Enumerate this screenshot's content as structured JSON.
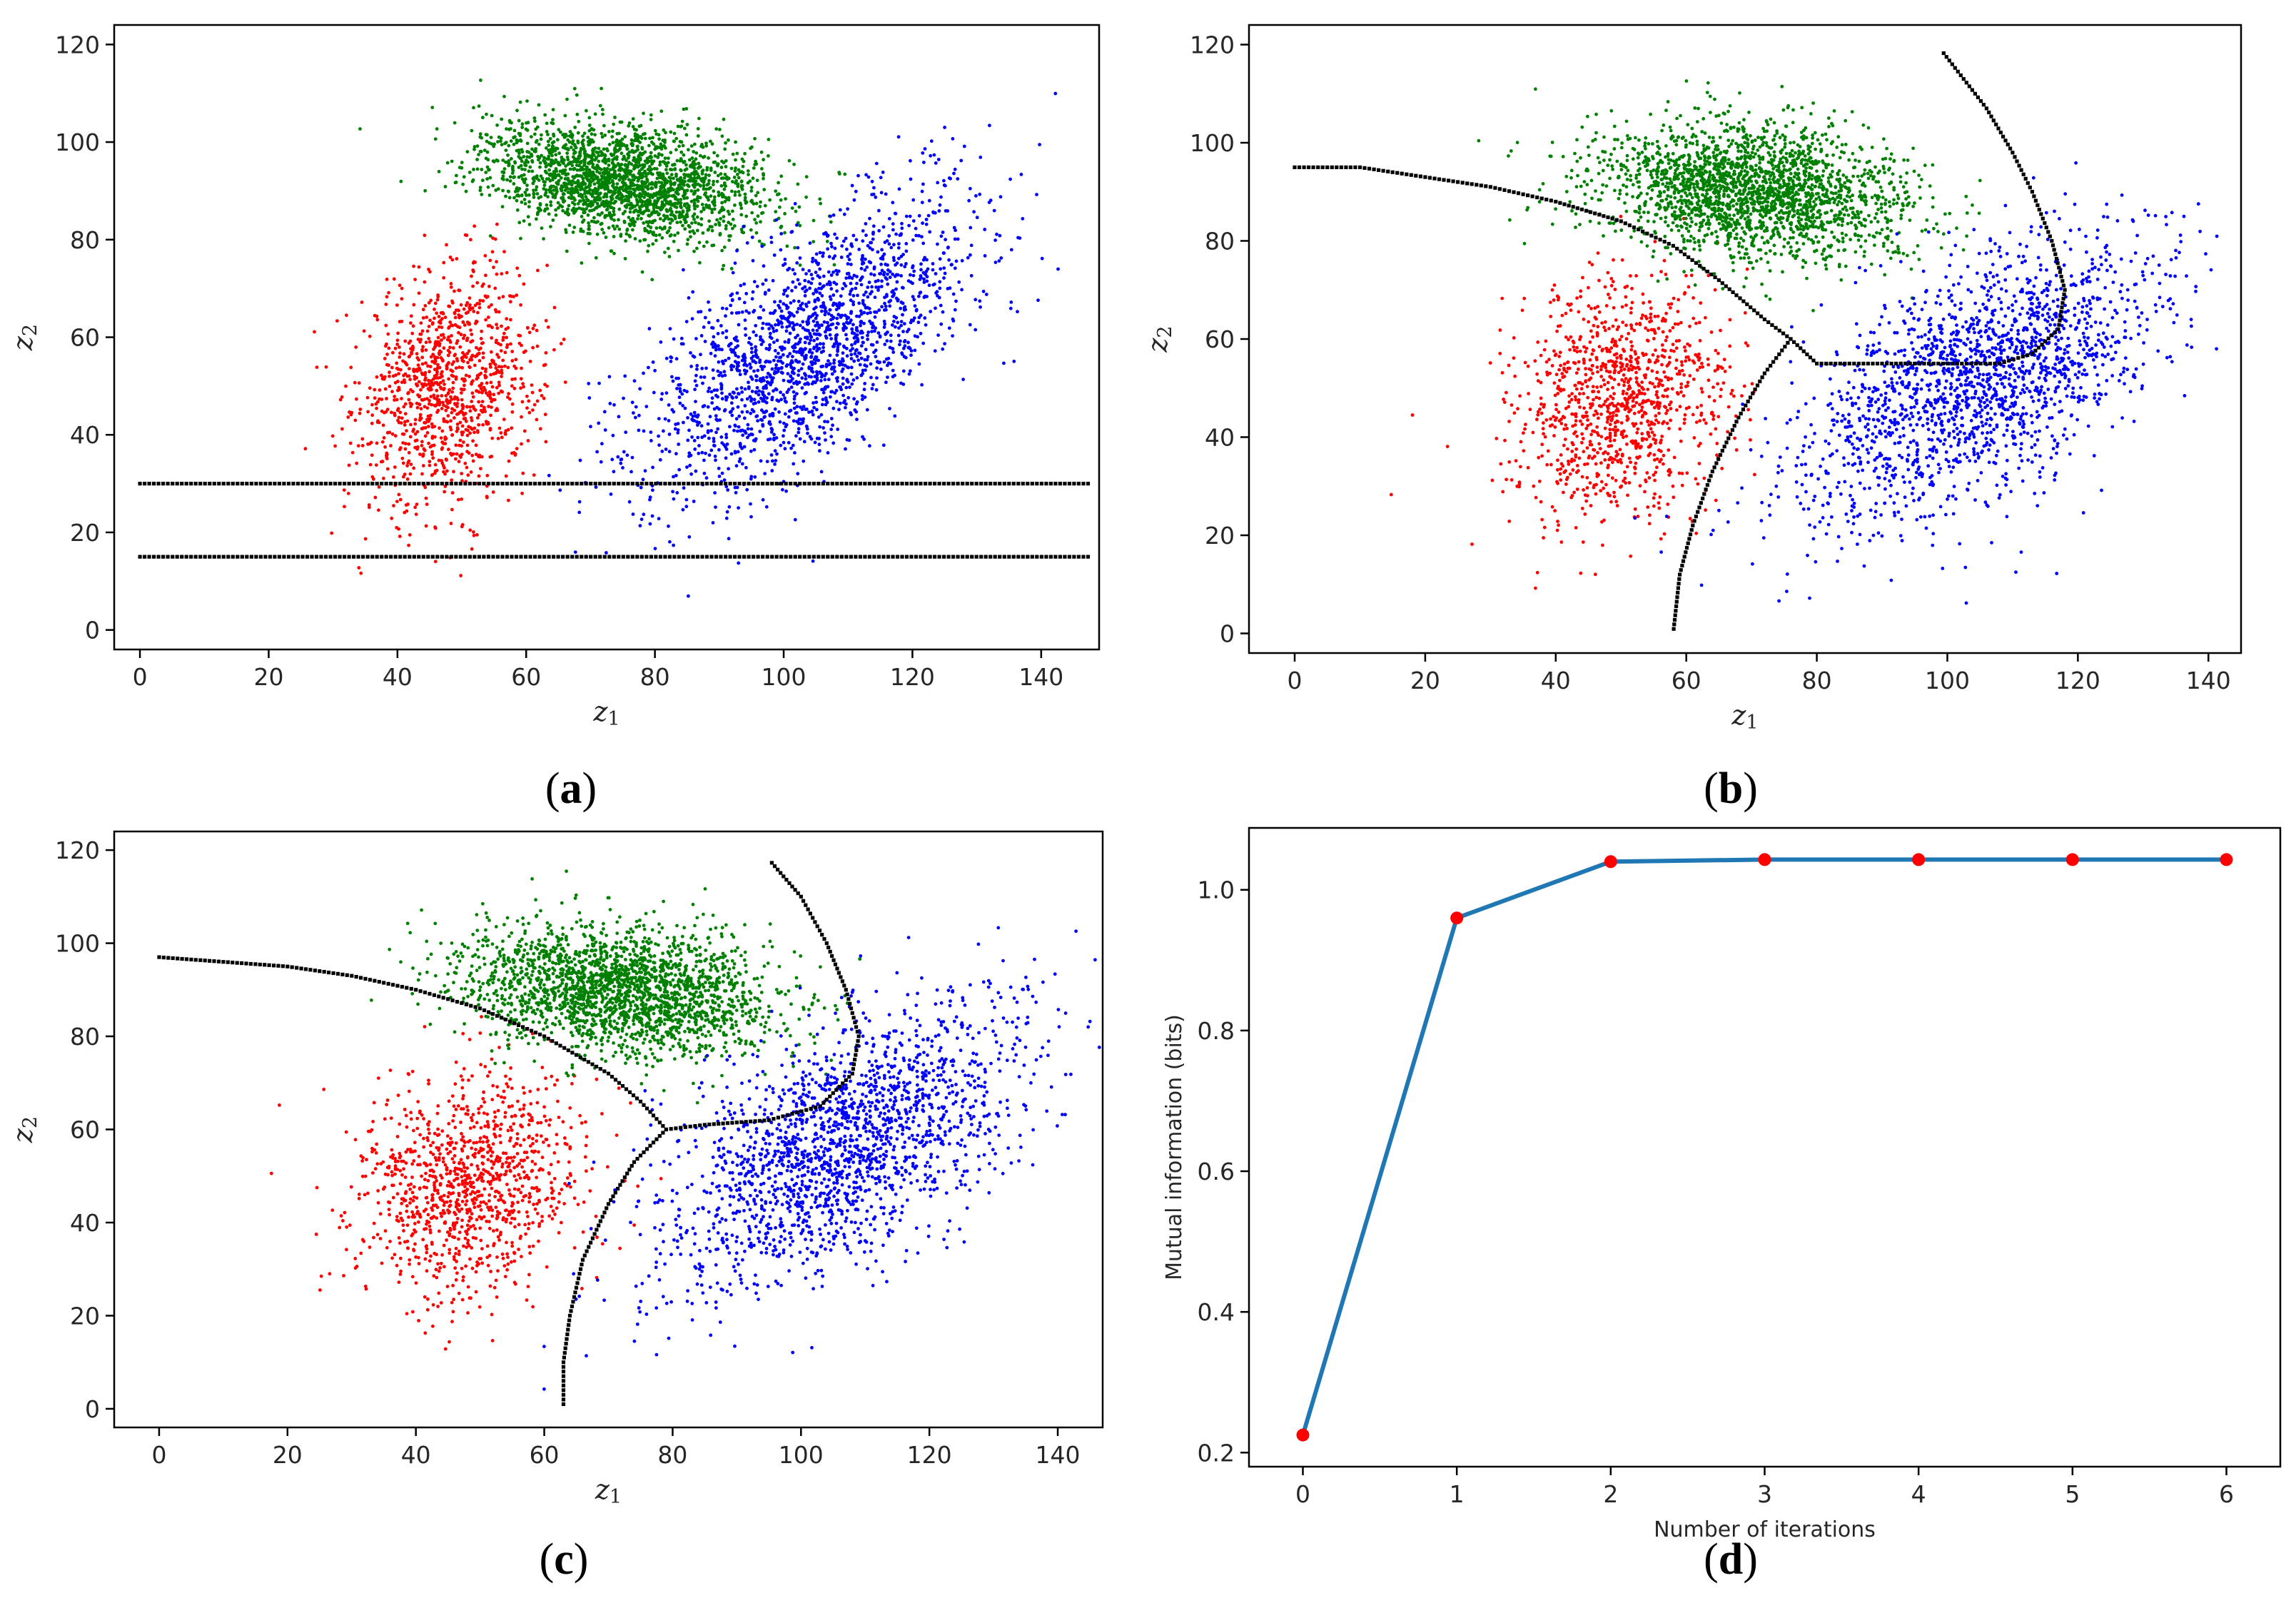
{
  "colors": {
    "red_cluster": "#ff0000",
    "green_cluster": "#008000",
    "blue_cluster": "#0000ff",
    "boundary": "#000000",
    "mi_line": "#1f77b4",
    "mi_markers": "#ff0000"
  },
  "panels": [
    {
      "id": "a",
      "label_prefix": "(",
      "label_letter": "a",
      "label_suffix": ")"
    },
    {
      "id": "b",
      "label_prefix": "(",
      "label_letter": "b",
      "label_suffix": ")"
    },
    {
      "id": "c",
      "label_prefix": "(",
      "label_letter": "c",
      "label_suffix": ")"
    },
    {
      "id": "d",
      "label_prefix": "(",
      "label_letter": "d",
      "label_suffix": ")"
    }
  ],
  "chart_data": [
    {
      "panel": "a",
      "type": "scatter",
      "xlabel_main": "z",
      "xlabel_sub": "1",
      "ylabel_main": "z",
      "ylabel_sub": "2",
      "xlim": [
        -4,
        149
      ],
      "ylim": [
        -4,
        124
      ],
      "xticks": [
        0,
        20,
        40,
        60,
        80,
        100,
        120,
        140
      ],
      "yticks": [
        0,
        20,
        40,
        60,
        80,
        100,
        120
      ],
      "grid": false,
      "clusters": [
        {
          "color": "red",
          "center": [
            48,
            50
          ],
          "spread": [
            7,
            12
          ],
          "rho": 0.2,
          "count": 1100
        },
        {
          "color": "green",
          "center": [
            75,
            92
          ],
          "spread": [
            11,
            6
          ],
          "rho": -0.35,
          "count": 2200
        },
        {
          "color": "blue",
          "center": [
            104,
            58
          ],
          "spread": [
            13,
            15
          ],
          "rho": 0.65,
          "count": 1900
        }
      ],
      "boundaries": [
        {
          "points": [
            [
              0,
              30
            ],
            [
              148,
              30
            ]
          ]
        },
        {
          "points": [
            [
              0,
              15
            ],
            [
              148,
              15
            ]
          ]
        }
      ]
    },
    {
      "panel": "b",
      "type": "scatter",
      "xlabel_main": "z",
      "xlabel_sub": "1",
      "ylabel_main": "z",
      "ylabel_sub": "2",
      "xlim": [
        -7,
        145
      ],
      "ylim": [
        -4,
        124
      ],
      "xticks": [
        0,
        20,
        40,
        60,
        80,
        100,
        120,
        140
      ],
      "yticks": [
        0,
        20,
        40,
        60,
        80,
        100,
        120
      ],
      "grid": false,
      "clusters": [
        {
          "color": "red",
          "center": [
            50,
            47
          ],
          "spread": [
            8,
            12
          ],
          "rho": 0.15,
          "count": 1100
        },
        {
          "color": "green",
          "center": [
            70,
            90
          ],
          "spread": [
            12,
            7
          ],
          "rho": -0.2,
          "count": 2200
        },
        {
          "color": "blue",
          "center": [
            105,
            52
          ],
          "spread": [
            14,
            14
          ],
          "rho": 0.55,
          "count": 1900
        }
      ],
      "boundaries": [
        {
          "points": [
            [
              0,
              95
            ],
            [
              10,
              95
            ],
            [
              20,
              93
            ],
            [
              30,
              91
            ],
            [
              40,
              88
            ],
            [
              50,
              84
            ],
            [
              58,
              79
            ],
            [
              65,
              72
            ],
            [
              72,
              64
            ],
            [
              76,
              60
            ]
          ]
        },
        {
          "points": [
            [
              76,
              60
            ],
            [
              80,
              55
            ],
            [
              95,
              55
            ],
            [
              108,
              55
            ],
            [
              113,
              57
            ],
            [
              117,
              62
            ],
            [
              118,
              70
            ],
            [
              116,
              80
            ],
            [
              113,
              90
            ],
            [
              110,
              98
            ],
            [
              106,
              107
            ],
            [
              99,
              119
            ]
          ]
        },
        {
          "points": [
            [
              76,
              60
            ],
            [
              72,
              53
            ],
            [
              68,
              44
            ],
            [
              64,
              33
            ],
            [
              61,
              22
            ],
            [
              59,
              12
            ],
            [
              58,
              0
            ]
          ]
        }
      ]
    },
    {
      "panel": "c",
      "type": "scatter",
      "xlabel_main": "z",
      "xlabel_sub": "1",
      "ylabel_main": "z",
      "ylabel_sub": "2",
      "xlim": [
        -7,
        147
      ],
      "ylim": [
        -4,
        124
      ],
      "xticks": [
        0,
        20,
        40,
        60,
        80,
        100,
        120,
        140
      ],
      "yticks": [
        0,
        20,
        40,
        60,
        80,
        100,
        120
      ],
      "grid": false,
      "clusters": [
        {
          "color": "red",
          "center": [
            48,
            48
          ],
          "spread": [
            9,
            12
          ],
          "rho": 0.1,
          "count": 1100
        },
        {
          "color": "green",
          "center": [
            72,
            90
          ],
          "spread": [
            12,
            7
          ],
          "rho": -0.25,
          "count": 2200
        },
        {
          "color": "blue",
          "center": [
            106,
            56
          ],
          "spread": [
            14,
            15
          ],
          "rho": 0.55,
          "count": 1900
        }
      ],
      "boundaries": [
        {
          "points": [
            [
              0,
              97
            ],
            [
              10,
              96
            ],
            [
              20,
              95
            ],
            [
              30,
              93
            ],
            [
              40,
              90
            ],
            [
              50,
              86
            ],
            [
              60,
              80
            ],
            [
              70,
              72
            ],
            [
              75,
              66
            ],
            [
              79,
              60
            ]
          ]
        },
        {
          "points": [
            [
              79,
              60
            ],
            [
              85,
              61
            ],
            [
              95,
              62
            ],
            [
              103,
              65
            ],
            [
              108,
              72
            ],
            [
              109,
              80
            ],
            [
              107,
              90
            ],
            [
              104,
              100
            ],
            [
              100,
              110
            ],
            [
              95,
              118
            ]
          ]
        },
        {
          "points": [
            [
              79,
              60
            ],
            [
              74,
              53
            ],
            [
              70,
              44
            ],
            [
              66,
              32
            ],
            [
              64,
              20
            ],
            [
              63,
              10
            ],
            [
              63,
              0
            ]
          ]
        }
      ]
    },
    {
      "panel": "d",
      "type": "line",
      "xlabel": "Number of iterations",
      "ylabel": "Mutual information (bits)",
      "xlim": [
        -0.35,
        6.35
      ],
      "ylim": [
        0.18,
        1.088
      ],
      "xticks": [
        0,
        1,
        2,
        3,
        4,
        5,
        6
      ],
      "ytick_values": [
        0.2,
        0.4,
        0.6,
        0.8,
        1.0
      ],
      "ytick_labels": [
        "0.2",
        "0.4",
        "0.6",
        "0.8",
        "1.0"
      ],
      "grid": false,
      "x": [
        0,
        1,
        2,
        3,
        4,
        5,
        6
      ],
      "values": [
        0.225,
        0.96,
        1.04,
        1.043,
        1.043,
        1.043,
        1.043
      ]
    }
  ]
}
